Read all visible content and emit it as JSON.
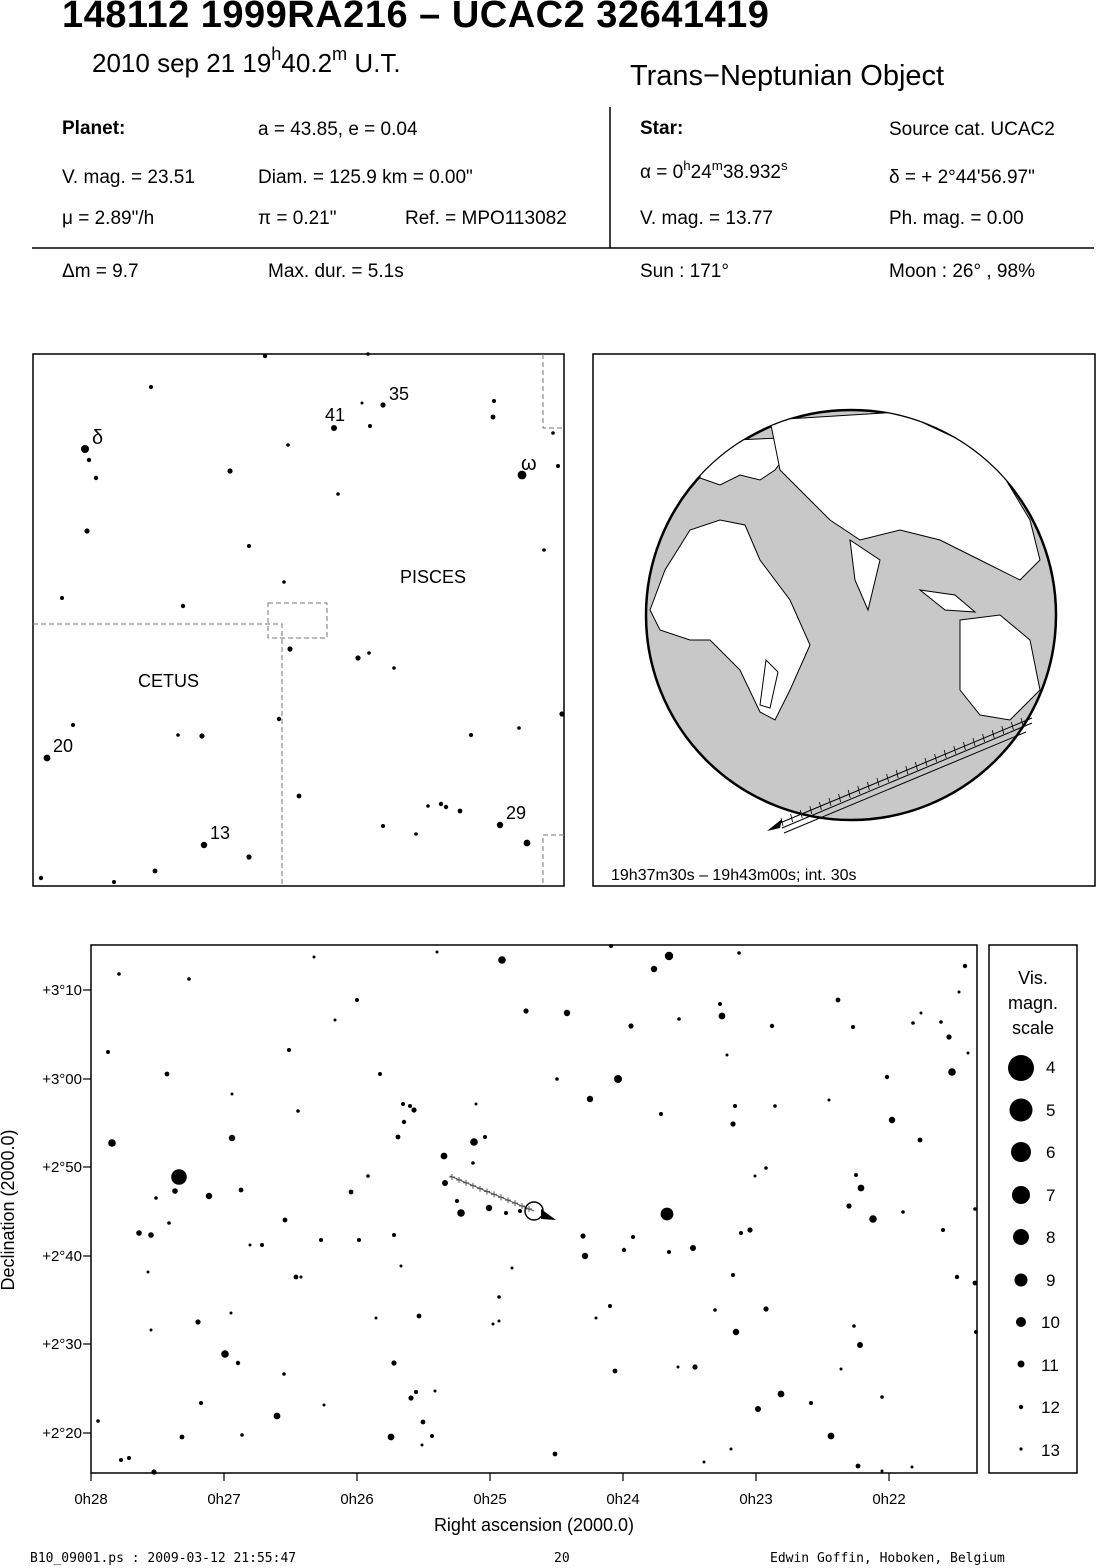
{
  "header": {
    "title": "148112 1999RA216  –  UCAC2 32641419",
    "date": "2010 sep 21",
    "time_h": "19",
    "time_m": "40.2",
    "time_suffix": " U.T.",
    "object_type": "Trans−Neptunian Object"
  },
  "planet": {
    "label": "Planet:",
    "orbit": "a = 43.85, e = 0.04",
    "vmag": "V. mag. = 23.51",
    "diam": "Diam. = 125.9 km = 0.00\"",
    "mu": "μ =  2.89\"/h",
    "pi": "π =  0.21\"",
    "ref": "Ref. = MPO113082"
  },
  "star": {
    "label": "Star:",
    "source": "Source cat.  UCAC2",
    "ra_prefix": "α =  0",
    "ra_h": "h",
    "ra_mid": "24",
    "ra_m": "m",
    "ra_sec": "38.932",
    "ra_s": "s",
    "dec": "δ = + 2°44'56.97\"",
    "vmag": "V. mag. = 13.77",
    "phmag": "Ph. mag. =  0.00"
  },
  "event": {
    "dm": "Δm = 9.7",
    "maxdur": "Max. dur. = 5.1s",
    "sun": "Sun : 171°",
    "moon": "Moon :  26° , 98%"
  },
  "finder": {
    "constellations": [
      "PISCES",
      "CETUS"
    ],
    "labels": [
      "δ",
      "41",
      "35",
      "ω",
      "20",
      "13",
      "29"
    ]
  },
  "globe": {
    "caption": "19h37m30s – 19h43m00s; int. 30s"
  },
  "chart_data": {
    "type": "scatter",
    "xlabel": "Right ascension (2000.0)",
    "ylabel": "Declination (2000.0)",
    "x_ticks": [
      "0h28",
      "0h27",
      "0h26",
      "0h25",
      "0h24",
      "0h23",
      "0h22"
    ],
    "y_ticks": [
      "+3°10",
      "+3°00",
      "+2°50",
      "+2°40",
      "+2°30",
      "+2°20"
    ],
    "target_star": {
      "ra": "0h24m38.932s",
      "dec": "+2°44'56.97\""
    }
  },
  "legend": {
    "title": [
      "Vis.",
      "magn.",
      "scale"
    ],
    "magnitudes": [
      "4",
      "5",
      "6",
      "7",
      "8",
      "9",
      "10",
      "11",
      "12",
      "13"
    ]
  },
  "footer": {
    "file": "B10_09001.ps : 2009-03-12 21:55:47",
    "page": "20",
    "author": "Edwin Goffin, Hoboken, Belgium"
  }
}
